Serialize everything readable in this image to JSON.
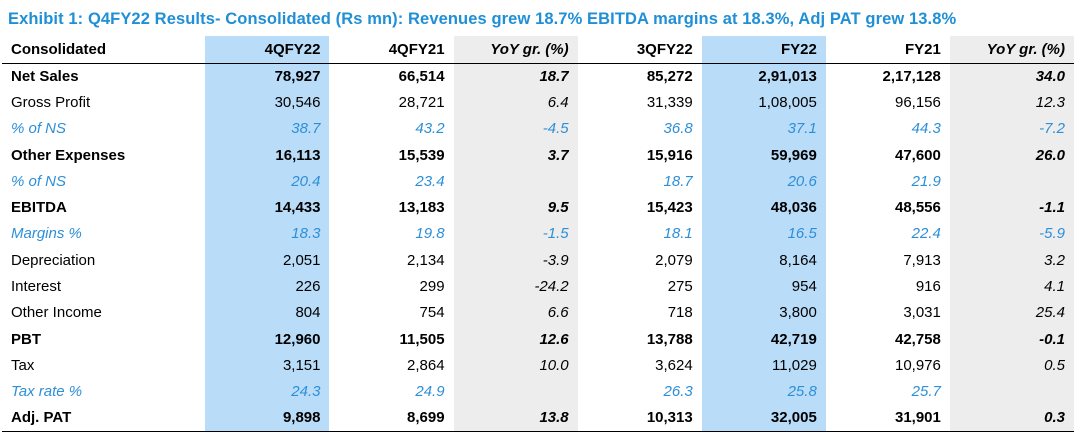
{
  "title": "Exhibit 1: Q4FY22 Results- Consolidated (Rs mn): Revenues grew 18.7% EBITDA margins at 18.3%, Adj PAT grew 13.8%",
  "columns": [
    "Consolidated",
    "4QFY22",
    "4QFY21",
    "YoY gr. (%)",
    "3QFY22",
    "FY22",
    "FY21",
    "YoY gr. (%)"
  ],
  "rows": [
    {
      "style": "bold",
      "cells": [
        "Net Sales",
        "78,927",
        "66,514",
        "18.7",
        "85,272",
        "2,91,013",
        "2,17,128",
        "34.0"
      ]
    },
    {
      "style": "normal",
      "cells": [
        "Gross Profit",
        "30,546",
        "28,721",
        "6.4",
        "31,339",
        "1,08,005",
        "96,156",
        "12.3"
      ]
    },
    {
      "style": "pct",
      "cells": [
        "% of NS",
        "38.7",
        "43.2",
        "-4.5",
        "36.8",
        "37.1",
        "44.3",
        "-7.2"
      ]
    },
    {
      "style": "bold",
      "cells": [
        "Other Expenses",
        "16,113",
        "15,539",
        "3.7",
        "15,916",
        "59,969",
        "47,600",
        "26.0"
      ]
    },
    {
      "style": "pct",
      "cells": [
        "% of NS",
        "20.4",
        "23.4",
        "",
        "18.7",
        "20.6",
        "21.9",
        ""
      ]
    },
    {
      "style": "bold",
      "cells": [
        "EBITDA",
        "14,433",
        "13,183",
        "9.5",
        "15,423",
        "48,036",
        "48,556",
        "-1.1"
      ]
    },
    {
      "style": "pct",
      "cells": [
        "Margins %",
        "18.3",
        "19.8",
        "-1.5",
        "18.1",
        "16.5",
        "22.4",
        "-5.9"
      ]
    },
    {
      "style": "normal",
      "cells": [
        "Depreciation",
        "2,051",
        "2,134",
        "-3.9",
        "2,079",
        "8,164",
        "7,913",
        "3.2"
      ]
    },
    {
      "style": "normal",
      "cells": [
        "Interest",
        "226",
        "299",
        "-24.2",
        "275",
        "954",
        "916",
        "4.1"
      ]
    },
    {
      "style": "normal",
      "cells": [
        "Other Income",
        "804",
        "754",
        "6.6",
        "718",
        "3,800",
        "3,031",
        "25.4"
      ]
    },
    {
      "style": "bold",
      "cells": [
        "PBT",
        "12,960",
        "11,505",
        "12.6",
        "13,788",
        "42,719",
        "42,758",
        "-0.1"
      ]
    },
    {
      "style": "normal",
      "cells": [
        "Tax",
        "3,151",
        "2,864",
        "10.0",
        "3,624",
        "11,029",
        "10,976",
        "0.5"
      ]
    },
    {
      "style": "pct",
      "cells": [
        "Tax rate %",
        "24.3",
        "24.9",
        "",
        "26.3",
        "25.8",
        "25.7",
        ""
      ]
    },
    {
      "style": "bold",
      "cells": [
        "Adj. PAT",
        "9,898",
        "8,699",
        "13.8",
        "10,313",
        "32,005",
        "31,901",
        "0.3"
      ]
    }
  ],
  "colors": {
    "title": "#1f8fd6",
    "highlight": "#b9dcf9",
    "yoy_bg": "#ededed",
    "pct_text": "#2d8fd8"
  }
}
